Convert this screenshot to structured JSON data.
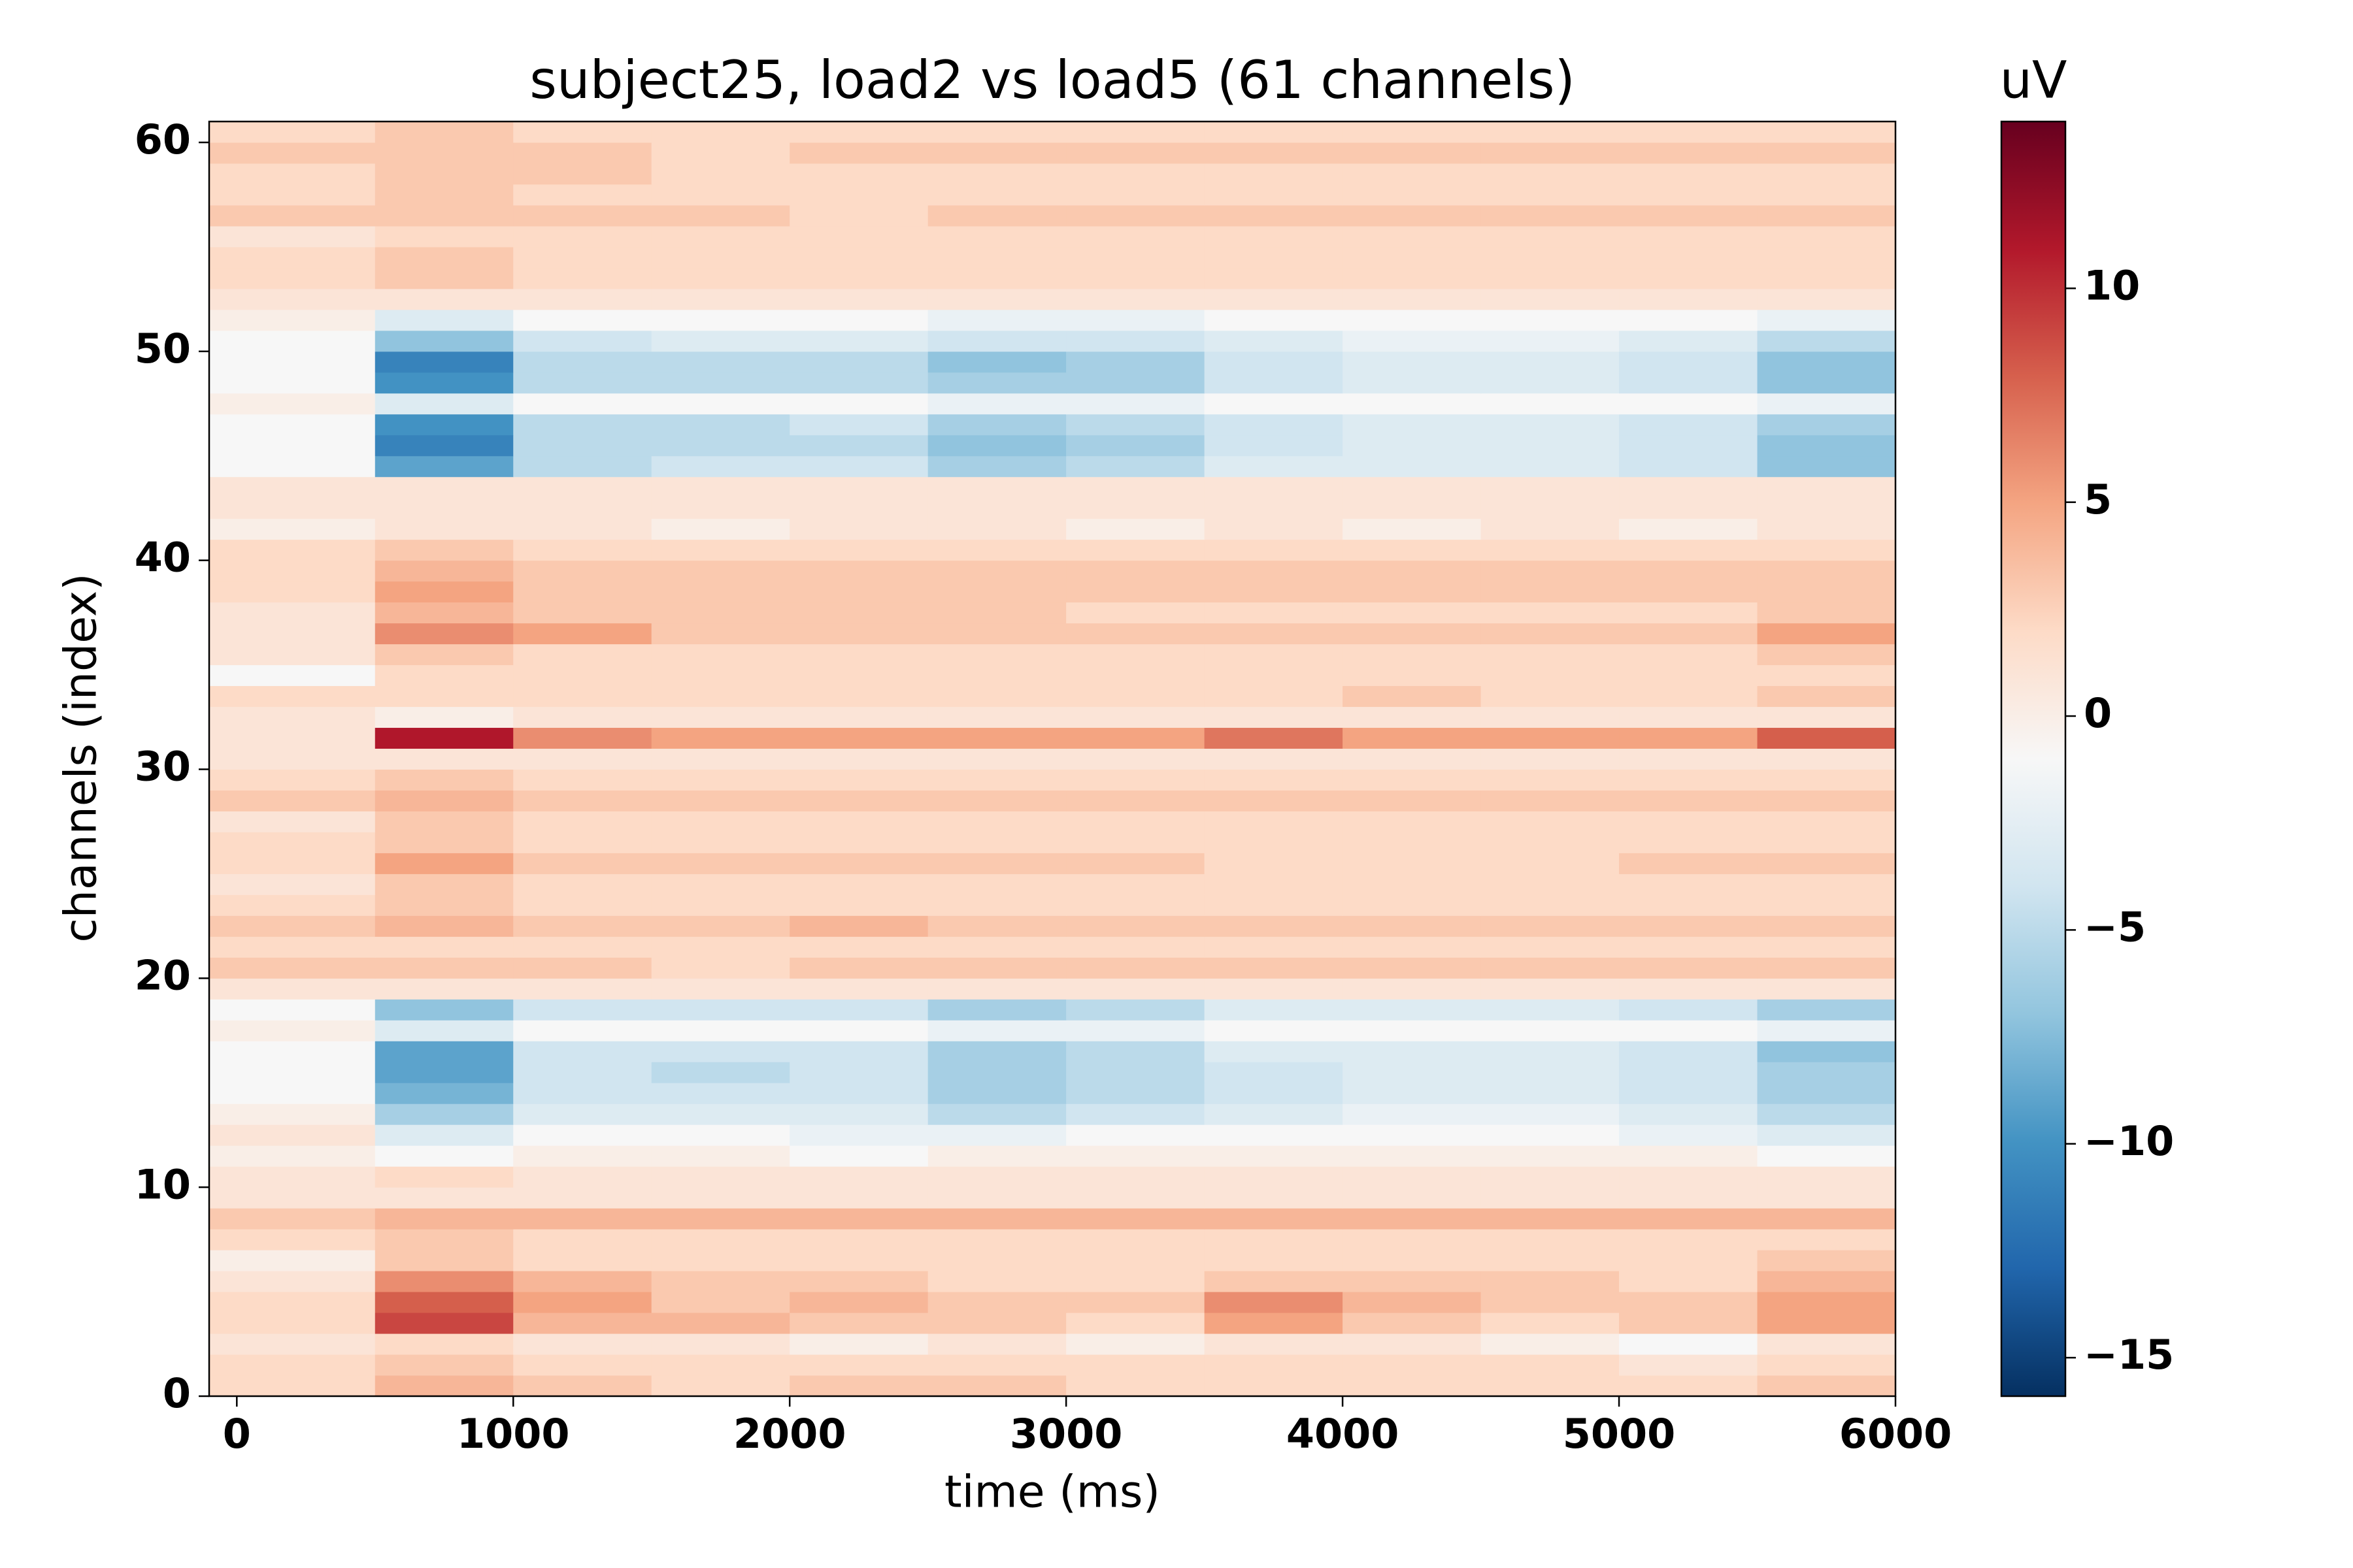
{
  "chart_data": {
    "type": "heatmap",
    "title": "subject25, load2 vs load5 (61 channels)",
    "xlabel": "time (ms)",
    "ylabel": "channels (index)",
    "colorbar_label": "uV",
    "x_edges": [
      -100,
      500,
      1000,
      1500,
      2000,
      2500,
      3000,
      3500,
      4000,
      4500,
      5000,
      5500,
      6000
    ],
    "y": [
      0,
      1,
      2,
      3,
      4,
      5,
      6,
      7,
      8,
      9,
      10,
      11,
      12,
      13,
      14,
      15,
      16,
      17,
      18,
      19,
      20,
      21,
      22,
      23,
      24,
      25,
      26,
      27,
      28,
      29,
      30,
      31,
      32,
      33,
      34,
      35,
      36,
      37,
      38,
      39,
      40,
      41,
      42,
      43,
      44,
      45,
      46,
      47,
      48,
      49,
      50,
      51,
      52,
      53,
      54,
      55,
      56,
      57,
      58,
      59,
      60
    ],
    "z": [
      [
        2,
        4,
        3,
        2,
        3,
        3,
        2,
        2,
        2,
        2,
        2,
        3
      ],
      [
        2,
        3,
        2,
        2,
        2,
        2,
        2,
        2,
        2,
        2,
        1,
        2
      ],
      [
        1,
        2,
        1,
        1,
        0,
        1,
        0,
        1,
        1,
        0,
        -1,
        1
      ],
      [
        2,
        9,
        4,
        4,
        3,
        3,
        2,
        5,
        3,
        2,
        3,
        5
      ],
      [
        2,
        8,
        5,
        3,
        4,
        3,
        3,
        6,
        4,
        3,
        3,
        5
      ],
      [
        1,
        6,
        4,
        3,
        3,
        2,
        2,
        3,
        3,
        3,
        2,
        4
      ],
      [
        0,
        3,
        2,
        2,
        2,
        2,
        2,
        2,
        2,
        2,
        2,
        3
      ],
      [
        2,
        3,
        2,
        2,
        2,
        2,
        2,
        2,
        2,
        2,
        2,
        2
      ],
      [
        3,
        4,
        4,
        4,
        4,
        4,
        4,
        4,
        4,
        4,
        4,
        4
      ],
      [
        1,
        1,
        1,
        1,
        1,
        1,
        1,
        1,
        1,
        1,
        1,
        1
      ],
      [
        1,
        2,
        1,
        1,
        1,
        1,
        1,
        1,
        1,
        1,
        1,
        1
      ],
      [
        0,
        -1,
        0,
        0,
        -1,
        0,
        0,
        0,
        0,
        0,
        0,
        -1
      ],
      [
        1,
        -3,
        -1,
        -1,
        -2,
        -2,
        -1,
        -1,
        -1,
        -1,
        -2,
        -3
      ],
      [
        0,
        -6,
        -3,
        -3,
        -3,
        -5,
        -4,
        -3,
        -2,
        -2,
        -3,
        -5
      ],
      [
        -1,
        -8,
        -4,
        -4,
        -4,
        -6,
        -5,
        -4,
        -3,
        -3,
        -4,
        -6
      ],
      [
        -1,
        -9,
        -4,
        -5,
        -4,
        -6,
        -5,
        -4,
        -3,
        -3,
        -4,
        -6
      ],
      [
        -1,
        -9,
        -4,
        -4,
        -4,
        -6,
        -5,
        -3,
        -3,
        -3,
        -4,
        -7
      ],
      [
        0,
        -3,
        -1,
        -1,
        -1,
        -2,
        -2,
        -1,
        -1,
        -1,
        -1,
        -2
      ],
      [
        -1,
        -7,
        -4,
        -4,
        -4,
        -6,
        -5,
        -3,
        -3,
        -3,
        -4,
        -6
      ],
      [
        1,
        1,
        1,
        1,
        1,
        1,
        1,
        1,
        1,
        1,
        1,
        1
      ],
      [
        3,
        3,
        3,
        2,
        3,
        3,
        3,
        3,
        3,
        3,
        3,
        3
      ],
      [
        2,
        2,
        2,
        2,
        2,
        2,
        2,
        2,
        2,
        2,
        2,
        2
      ],
      [
        3,
        4,
        3,
        3,
        4,
        3,
        3,
        3,
        3,
        3,
        3,
        3
      ],
      [
        2,
        3,
        2,
        2,
        2,
        2,
        2,
        2,
        2,
        2,
        2,
        2
      ],
      [
        1,
        3,
        2,
        2,
        2,
        2,
        2,
        2,
        2,
        2,
        2,
        2
      ],
      [
        2,
        5,
        3,
        3,
        3,
        3,
        3,
        2,
        2,
        2,
        3,
        3
      ],
      [
        2,
        3,
        2,
        2,
        2,
        2,
        2,
        2,
        2,
        2,
        2,
        2
      ],
      [
        1,
        3,
        2,
        2,
        2,
        2,
        2,
        2,
        2,
        2,
        2,
        2
      ],
      [
        3,
        4,
        3,
        3,
        3,
        3,
        3,
        3,
        3,
        3,
        3,
        3
      ],
      [
        2,
        3,
        2,
        2,
        2,
        2,
        2,
        2,
        2,
        2,
        2,
        2
      ],
      [
        1,
        1,
        1,
        1,
        1,
        1,
        1,
        1,
        1,
        1,
        1,
        1
      ],
      [
        1,
        11,
        6,
        5,
        5,
        5,
        5,
        7,
        5,
        5,
        5,
        8
      ],
      [
        1,
        0,
        1,
        1,
        1,
        1,
        1,
        1,
        1,
        1,
        1,
        1
      ],
      [
        2,
        2,
        2,
        2,
        2,
        2,
        2,
        2,
        3,
        2,
        2,
        3
      ],
      [
        -1,
        2,
        2,
        2,
        2,
        2,
        2,
        2,
        2,
        2,
        2,
        2
      ],
      [
        1,
        3,
        2,
        2,
        2,
        2,
        2,
        2,
        2,
        2,
        2,
        3
      ],
      [
        1,
        6,
        5,
        3,
        3,
        3,
        3,
        3,
        3,
        3,
        3,
        5
      ],
      [
        1,
        4,
        3,
        3,
        3,
        3,
        2,
        2,
        2,
        2,
        2,
        3
      ],
      [
        2,
        5,
        3,
        3,
        3,
        3,
        3,
        3,
        3,
        3,
        3,
        3
      ],
      [
        2,
        4,
        3,
        3,
        3,
        3,
        3,
        3,
        3,
        3,
        3,
        3
      ],
      [
        2,
        3,
        2,
        2,
        2,
        2,
        2,
        2,
        2,
        2,
        2,
        2
      ],
      [
        0,
        1,
        1,
        0,
        1,
        1,
        0,
        1,
        0,
        1,
        0,
        1
      ],
      [
        1,
        1,
        1,
        1,
        1,
        1,
        1,
        1,
        1,
        1,
        1,
        1
      ],
      [
        1,
        1,
        1,
        1,
        1,
        1,
        1,
        1,
        1,
        1,
        1,
        1
      ],
      [
        -1,
        -9,
        -5,
        -4,
        -4,
        -6,
        -5,
        -3,
        -3,
        -3,
        -4,
        -7
      ],
      [
        -1,
        -11,
        -5,
        -5,
        -5,
        -7,
        -6,
        -4,
        -3,
        -3,
        -4,
        -7
      ],
      [
        -1,
        -10,
        -5,
        -5,
        -4,
        -6,
        -5,
        -4,
        -3,
        -3,
        -4,
        -6
      ],
      [
        0,
        -3,
        -1,
        -1,
        -1,
        -2,
        -2,
        -1,
        -1,
        -1,
        -1,
        -2
      ],
      [
        -1,
        -10,
        -5,
        -5,
        -5,
        -6,
        -6,
        -4,
        -3,
        -3,
        -4,
        -7
      ],
      [
        -1,
        -11,
        -5,
        -5,
        -5,
        -7,
        -6,
        -4,
        -3,
        -3,
        -4,
        -7
      ],
      [
        -1,
        -7,
        -4,
        -3,
        -3,
        -4,
        -4,
        -3,
        -2,
        -2,
        -3,
        -5
      ],
      [
        0,
        -3,
        -1,
        -1,
        -1,
        -2,
        -2,
        -1,
        -1,
        -1,
        -1,
        -2
      ],
      [
        1,
        1,
        1,
        1,
        1,
        1,
        1,
        1,
        1,
        1,
        1,
        1
      ],
      [
        2,
        3,
        2,
        2,
        2,
        2,
        2,
        2,
        2,
        2,
        2,
        2
      ],
      [
        2,
        3,
        2,
        2,
        2,
        2,
        2,
        2,
        2,
        2,
        2,
        2
      ],
      [
        1,
        2,
        2,
        2,
        2,
        2,
        2,
        2,
        2,
        2,
        2,
        2
      ],
      [
        3,
        3,
        3,
        3,
        2,
        3,
        3,
        3,
        3,
        3,
        3,
        3
      ],
      [
        2,
        3,
        2,
        2,
        2,
        2,
        2,
        2,
        2,
        2,
        2,
        2
      ],
      [
        2,
        3,
        3,
        2,
        2,
        2,
        2,
        2,
        2,
        2,
        2,
        2
      ],
      [
        3,
        3,
        3,
        2,
        3,
        3,
        3,
        3,
        3,
        3,
        3,
        3
      ],
      [
        2,
        3,
        2,
        2,
        2,
        2,
        2,
        2,
        2,
        2,
        2,
        2
      ]
    ],
    "xlim": [
      -100,
      6000
    ],
    "xticks": [
      0,
      1000,
      2000,
      3000,
      4000,
      5000,
      6000
    ],
    "ylim": [
      0,
      61
    ],
    "yticks": [
      0,
      10,
      20,
      30,
      40,
      50,
      60
    ],
    "clim": [
      -15.9,
      13.9
    ],
    "cticks": [
      {
        "value": -15,
        "label": "−15"
      },
      {
        "value": -10,
        "label": "−10"
      },
      {
        "value": -5,
        "label": "−5"
      },
      0,
      5,
      10
    ],
    "colormap": [
      "#053061",
      "#2166ac",
      "#4393c3",
      "#92c5de",
      "#d1e5f0",
      "#f7f7f7",
      "#fddbc7",
      "#f4a582",
      "#d6604d",
      "#b2182b",
      "#67001f"
    ]
  }
}
